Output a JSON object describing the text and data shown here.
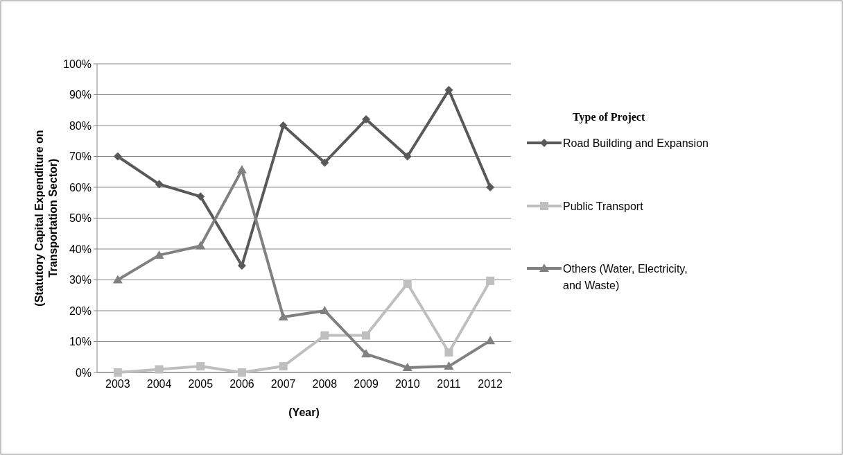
{
  "chart_data": {
    "type": "line",
    "xlabel": "(Year)",
    "ylabel": "(Statutory Capital Expenditure on Transportation Sector)",
    "legend_title": "Type of Project",
    "categories": [
      "2003",
      "2004",
      "2005",
      "2006",
      "2007",
      "2008",
      "2009",
      "2010",
      "2011",
      "2012"
    ],
    "series": [
      {
        "name": "Road Building and Expansion",
        "color": "#595959",
        "marker": "diamond",
        "values": [
          70,
          61,
          57,
          34.6,
          80,
          68,
          82,
          70,
          91.5,
          60
        ]
      },
      {
        "name": "Public Transport",
        "color": "#bfbfbf",
        "marker": "square",
        "values": [
          0,
          1,
          2,
          0,
          2,
          12,
          12,
          28.8,
          6.5,
          29.7
        ]
      },
      {
        "name": "Others (Water, Electricity, and Waste)",
        "color": "#808080",
        "marker": "triangle",
        "values": [
          30,
          38,
          41,
          65.6,
          18,
          20,
          6,
          1.6,
          2,
          10.3
        ]
      }
    ],
    "ylim": [
      0,
      100
    ],
    "yticks": [
      {
        "value": 0,
        "label": "0%"
      },
      {
        "value": 10,
        "label": "10%"
      },
      {
        "value": 20,
        "label": "20%"
      },
      {
        "value": 30,
        "label": "30%"
      },
      {
        "value": 40,
        "label": "40%"
      },
      {
        "value": 50,
        "label": "50%"
      },
      {
        "value": 60,
        "label": "60%"
      },
      {
        "value": 70,
        "label": "70%"
      },
      {
        "value": 80,
        "label": "80%"
      },
      {
        "value": 90,
        "label": "90%"
      },
      {
        "value": 100,
        "label": "100%"
      }
    ],
    "grid": "y",
    "legend": "right",
    "line_style": "solid"
  }
}
